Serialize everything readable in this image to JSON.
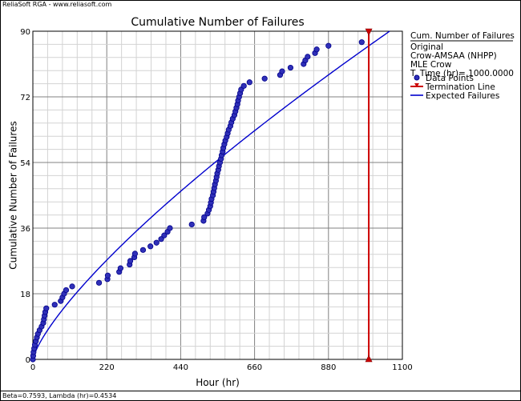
{
  "watermark": "ReliaSoft RGA - www.reliasoft.com",
  "footer": "Beta=0.7593, Lambda (hr)=0.4534",
  "legend": {
    "title": "Cum. Number of Failures",
    "info": [
      "Original",
      "Crow-AMSAA (NHPP)",
      "MLE Crow",
      "T. Time (hr)= 1000.0000"
    ],
    "items": [
      {
        "label": "Data Points",
        "kind": "point"
      },
      {
        "label": "Termination Line",
        "kind": "termination"
      },
      {
        "label": "Expected Failures",
        "kind": "line"
      }
    ]
  },
  "colors": {
    "point_fill": "#3030b8",
    "point_stroke": "#00008b",
    "model_line": "#0000cd",
    "termination": "#cc0000",
    "grid_major": "#808080",
    "grid_minor": "#d3d3d3"
  },
  "chart_data": {
    "type": "line",
    "title": "Cumulative Number of Failures",
    "xlabel": "Hour (hr)",
    "ylabel": "Cumulative Number of Failures",
    "xlim": [
      0,
      1100
    ],
    "ylim": [
      0,
      90
    ],
    "xticks": [
      0,
      220,
      440,
      660,
      880,
      1100
    ],
    "yticks": [
      0,
      18,
      36,
      54,
      72,
      90
    ],
    "grid": true,
    "legend_position": "right",
    "model": {
      "name": "Expected Failures",
      "beta": 0.7593,
      "lambda": 0.4534
    },
    "termination_time": 1000,
    "series": [
      {
        "name": "Data Points",
        "points": [
          [
            0,
            0
          ],
          [
            1,
            1
          ],
          [
            2,
            2
          ],
          [
            4,
            3
          ],
          [
            6,
            4
          ],
          [
            9,
            5
          ],
          [
            12,
            6
          ],
          [
            15,
            7
          ],
          [
            20,
            8
          ],
          [
            26,
            9
          ],
          [
            31,
            10
          ],
          [
            33,
            11
          ],
          [
            35,
            12
          ],
          [
            37,
            13
          ],
          [
            40,
            14
          ],
          [
            65,
            15
          ],
          [
            83,
            16
          ],
          [
            88,
            17
          ],
          [
            93,
            18
          ],
          [
            99,
            19
          ],
          [
            117,
            20
          ],
          [
            197,
            21
          ],
          [
            222,
            22
          ],
          [
            223,
            23
          ],
          [
            257,
            24
          ],
          [
            261,
            25
          ],
          [
            288,
            26
          ],
          [
            290,
            27
          ],
          [
            302,
            28
          ],
          [
            304,
            29
          ],
          [
            328,
            30
          ],
          [
            350,
            31
          ],
          [
            368,
            32
          ],
          [
            382,
            33
          ],
          [
            391,
            34
          ],
          [
            401,
            35
          ],
          [
            408,
            36
          ],
          [
            473,
            37
          ],
          [
            508,
            38
          ],
          [
            510,
            39
          ],
          [
            520,
            40
          ],
          [
            524,
            41
          ],
          [
            528,
            42
          ],
          [
            530,
            43
          ],
          [
            532,
            44
          ],
          [
            536,
            45
          ],
          [
            538,
            46
          ],
          [
            540,
            47
          ],
          [
            542,
            48
          ],
          [
            545,
            49
          ],
          [
            547,
            50
          ],
          [
            549,
            51
          ],
          [
            552,
            52
          ],
          [
            554,
            53
          ],
          [
            557,
            54
          ],
          [
            560,
            55
          ],
          [
            562,
            56
          ],
          [
            565,
            57
          ],
          [
            567,
            58
          ],
          [
            570,
            59
          ],
          [
            573,
            60
          ],
          [
            577,
            61
          ],
          [
            580,
            62
          ],
          [
            583,
            63
          ],
          [
            588,
            64
          ],
          [
            591,
            65
          ],
          [
            595,
            66
          ],
          [
            600,
            67
          ],
          [
            603,
            68
          ],
          [
            606,
            69
          ],
          [
            609,
            70
          ],
          [
            611,
            71
          ],
          [
            614,
            72
          ],
          [
            617,
            73
          ],
          [
            620,
            74
          ],
          [
            628,
            75
          ],
          [
            645,
            76
          ],
          [
            690,
            77
          ],
          [
            736,
            78
          ],
          [
            742,
            79
          ],
          [
            767,
            80
          ],
          [
            806,
            81
          ],
          [
            811,
            82
          ],
          [
            818,
            83
          ],
          [
            840,
            84
          ],
          [
            845,
            85
          ],
          [
            880,
            86
          ],
          [
            979,
            87
          ]
        ]
      }
    ]
  }
}
